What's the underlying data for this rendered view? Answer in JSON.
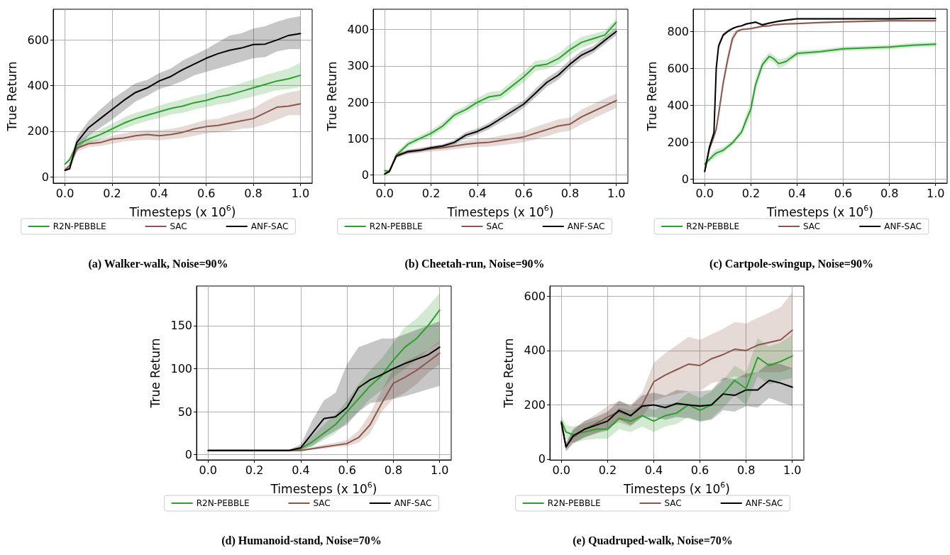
{
  "chart_data": [
    {
      "type": "line",
      "title": "(a) Walker-walk, Noise=90%",
      "xlabel": "Timesteps (x 10$^{6}$)",
      "ylabel": "True Return",
      "grid": true,
      "legend": "bottom",
      "xlim": [
        -0.05,
        1.05
      ],
      "xticks": [
        {
          "value": 0,
          "label": "0.0"
        },
        {
          "value": 0.2,
          "label": "0.2"
        },
        {
          "value": 0.4,
          "label": "0.4"
        },
        {
          "value": 0.6,
          "label": "0.6"
        },
        {
          "value": 0.8,
          "label": "0.8"
        },
        {
          "value": 1,
          "label": "1.0"
        }
      ],
      "ylim": [
        -28,
        735
      ],
      "yticks": [
        0,
        200,
        400,
        600
      ],
      "x": [
        0,
        0.02,
        0.05,
        0.1,
        0.15,
        0.2,
        0.25,
        0.3,
        0.35,
        0.4,
        0.45,
        0.5,
        0.55,
        0.6,
        0.65,
        0.7,
        0.75,
        0.8,
        0.85,
        0.9,
        0.95,
        1.0
      ],
      "series": [
        {
          "name": "R2N-PEBBLE",
          "color": "#2ca02c",
          "values": [
            55,
            75,
            140,
            165,
            185,
            210,
            235,
            255,
            270,
            285,
            300,
            310,
            325,
            335,
            350,
            360,
            375,
            390,
            405,
            420,
            430,
            445
          ],
          "lower": [
            50,
            65,
            120,
            145,
            163,
            188,
            210,
            230,
            245,
            258,
            273,
            280,
            295,
            305,
            318,
            325,
            340,
            352,
            365,
            380,
            385,
            395
          ],
          "upper": [
            60,
            85,
            160,
            185,
            207,
            232,
            260,
            280,
            295,
            312,
            327,
            340,
            355,
            365,
            382,
            395,
            410,
            428,
            445,
            460,
            475,
            500
          ]
        },
        {
          "name": "SAC",
          "color": "#8c564b",
          "values": [
            30,
            50,
            125,
            145,
            150,
            165,
            170,
            180,
            185,
            180,
            185,
            195,
            210,
            220,
            225,
            235,
            245,
            255,
            280,
            305,
            310,
            320
          ],
          "lower": [
            27,
            45,
            110,
            130,
            135,
            145,
            155,
            160,
            162,
            160,
            165,
            170,
            180,
            190,
            195,
            200,
            210,
            215,
            230,
            250,
            270,
            270
          ],
          "upper": [
            33,
            60,
            135,
            160,
            165,
            180,
            190,
            200,
            205,
            205,
            210,
            220,
            235,
            250,
            255,
            270,
            285,
            300,
            330,
            355,
            370,
            380
          ]
        },
        {
          "name": "ANF-SAC",
          "color": "#000000",
          "values": [
            28,
            35,
            150,
            215,
            255,
            295,
            335,
            370,
            390,
            420,
            440,
            470,
            495,
            520,
            540,
            555,
            565,
            580,
            582,
            600,
            620,
            628
          ],
          "lower": [
            25,
            30,
            110,
            180,
            215,
            250,
            290,
            330,
            355,
            385,
            400,
            420,
            445,
            460,
            475,
            490,
            505,
            520,
            525,
            550,
            560,
            560
          ],
          "upper": [
            32,
            45,
            175,
            245,
            295,
            340,
            375,
            410,
            425,
            455,
            475,
            510,
            535,
            560,
            590,
            620,
            630,
            650,
            660,
            680,
            695,
            705
          ]
        }
      ]
    },
    {
      "type": "line",
      "title": "(b) Cheetah-run, Noise=90%",
      "xlabel": "Timesteps (x 10$^{6}$)",
      "ylabel": "True Return",
      "grid": true,
      "legend": "bottom",
      "xlim": [
        -0.05,
        1.05
      ],
      "xticks": [
        {
          "value": 0,
          "label": "0.0"
        },
        {
          "value": 0.2,
          "label": "0.2"
        },
        {
          "value": 0.4,
          "label": "0.4"
        },
        {
          "value": 0.6,
          "label": "0.6"
        },
        {
          "value": 0.8,
          "label": "0.8"
        },
        {
          "value": 1,
          "label": "1.0"
        }
      ],
      "ylim": [
        -22,
        456
      ],
      "yticks": [
        0,
        100,
        200,
        300,
        400
      ],
      "x": [
        0,
        0.02,
        0.05,
        0.1,
        0.15,
        0.2,
        0.25,
        0.3,
        0.35,
        0.4,
        0.45,
        0.5,
        0.55,
        0.6,
        0.65,
        0.7,
        0.75,
        0.8,
        0.85,
        0.9,
        0.95,
        1.0
      ],
      "series": [
        {
          "name": "R2N-PEBBLE",
          "color": "#2ca02c",
          "values": [
            12,
            10,
            55,
            85,
            100,
            115,
            135,
            165,
            180,
            200,
            215,
            220,
            245,
            270,
            300,
            305,
            320,
            345,
            365,
            375,
            385,
            420
          ],
          "lower": [
            8,
            5,
            48,
            77,
            92,
            106,
            125,
            155,
            170,
            188,
            202,
            208,
            232,
            255,
            286,
            292,
            305,
            330,
            350,
            362,
            373,
            405
          ],
          "upper": [
            16,
            15,
            62,
            93,
            108,
            124,
            145,
            175,
            190,
            212,
            228,
            232,
            258,
            285,
            314,
            318,
            335,
            360,
            380,
            388,
            397,
            430
          ]
        },
        {
          "name": "SAC",
          "color": "#8c564b",
          "values": [
            3,
            12,
            55,
            63,
            68,
            72,
            75,
            80,
            85,
            88,
            90,
            95,
            100,
            105,
            115,
            125,
            135,
            140,
            160,
            175,
            190,
            205
          ],
          "lower": [
            1,
            8,
            50,
            57,
            61,
            65,
            67,
            71,
            75,
            77,
            78,
            82,
            86,
            90,
            98,
            107,
            117,
            122,
            140,
            155,
            170,
            185
          ],
          "upper": [
            5,
            16,
            60,
            69,
            75,
            79,
            83,
            89,
            95,
            99,
            102,
            108,
            114,
            120,
            132,
            143,
            153,
            158,
            180,
            195,
            210,
            225
          ]
        },
        {
          "name": "ANF-SAC",
          "color": "#000000",
          "values": [
            3,
            10,
            52,
            65,
            68,
            75,
            80,
            90,
            110,
            120,
            135,
            155,
            175,
            195,
            225,
            255,
            275,
            305,
            330,
            345,
            370,
            395
          ],
          "lower": [
            1,
            6,
            47,
            60,
            63,
            70,
            75,
            84,
            102,
            112,
            126,
            145,
            163,
            185,
            213,
            243,
            263,
            293,
            318,
            335,
            360,
            385
          ],
          "upper": [
            5,
            14,
            57,
            70,
            73,
            80,
            85,
            96,
            118,
            128,
            144,
            165,
            187,
            205,
            237,
            267,
            287,
            317,
            342,
            355,
            380,
            405
          ]
        }
      ]
    },
    {
      "type": "line",
      "title": "(c) Cartpole-swingup, Noise=90%",
      "xlabel": "Timesteps (x 10$^{6}$)",
      "ylabel": "True Return",
      "grid": true,
      "legend": "bottom",
      "xlim": [
        -0.05,
        1.05
      ],
      "xticks": [
        {
          "value": 0,
          "label": "0.0"
        },
        {
          "value": 0.2,
          "label": "0.2"
        },
        {
          "value": 0.4,
          "label": "0.4"
        },
        {
          "value": 0.6,
          "label": "0.6"
        },
        {
          "value": 0.8,
          "label": "0.8"
        },
        {
          "value": 1,
          "label": "1.0"
        }
      ],
      "ylim": [
        -23,
        920
      ],
      "yticks": [
        0,
        200,
        400,
        600,
        800
      ],
      "x": [
        0,
        0.02,
        0.04,
        0.05,
        0.06,
        0.08,
        0.1,
        0.12,
        0.14,
        0.16,
        0.18,
        0.2,
        0.22,
        0.25,
        0.28,
        0.3,
        0.32,
        0.35,
        0.4,
        0.5,
        0.6,
        0.7,
        0.8,
        0.9,
        1.0
      ],
      "series": [
        {
          "name": "R2N-PEBBLE",
          "color": "#2ca02c",
          "values": [
            80,
            105,
            130,
            140,
            145,
            155,
            175,
            195,
            225,
            255,
            320,
            380,
            510,
            620,
            665,
            650,
            625,
            635,
            680,
            690,
            705,
            710,
            715,
            725,
            730
          ],
          "lower": [
            70,
            90,
            110,
            120,
            125,
            140,
            160,
            180,
            210,
            235,
            290,
            345,
            475,
            595,
            645,
            630,
            600,
            615,
            665,
            678,
            693,
            698,
            703,
            713,
            718
          ],
          "upper": [
            90,
            120,
            150,
            160,
            165,
            170,
            190,
            210,
            240,
            275,
            350,
            415,
            545,
            645,
            685,
            670,
            650,
            655,
            695,
            702,
            717,
            722,
            727,
            737,
            742
          ]
        },
        {
          "name": "SAC",
          "color": "#8c564b",
          "values": [
            40,
            160,
            230,
            270,
            350,
            520,
            650,
            760,
            800,
            810,
            812,
            815,
            820,
            828,
            830,
            835,
            837,
            840,
            842,
            848,
            852,
            855,
            857,
            857,
            857
          ],
          "lower": [
            35,
            150,
            215,
            250,
            325,
            490,
            620,
            735,
            790,
            805,
            807,
            810,
            815,
            823,
            825,
            830,
            832,
            835,
            837,
            843,
            847,
            850,
            852,
            852,
            852
          ],
          "upper": [
            45,
            170,
            245,
            290,
            375,
            550,
            680,
            785,
            810,
            815,
            817,
            820,
            825,
            833,
            835,
            840,
            842,
            845,
            847,
            853,
            857,
            860,
            862,
            862,
            862
          ]
        },
        {
          "name": "ANF-SAC",
          "color": "#000000",
          "values": [
            40,
            170,
            250,
            600,
            720,
            780,
            800,
            815,
            825,
            830,
            840,
            845,
            850,
            835,
            845,
            850,
            855,
            860,
            868,
            868,
            868,
            868,
            868,
            870,
            870
          ],
          "lower": [
            35,
            160,
            235,
            575,
            700,
            770,
            792,
            810,
            820,
            825,
            835,
            840,
            845,
            827,
            840,
            845,
            850,
            855,
            863,
            863,
            863,
            863,
            863,
            865,
            865
          ],
          "upper": [
            45,
            180,
            265,
            625,
            740,
            790,
            808,
            820,
            830,
            835,
            845,
            850,
            855,
            843,
            850,
            855,
            860,
            865,
            873,
            873,
            873,
            873,
            873,
            875,
            875
          ]
        }
      ]
    },
    {
      "type": "line",
      "title": "(d) Humanoid-stand, Noise=70%",
      "xlabel": "Timesteps (x 10$^{6}$)",
      "ylabel": "True Return",
      "grid": true,
      "legend": "bottom",
      "xlim": [
        -0.05,
        1.05
      ],
      "xticks": [
        {
          "value": 0,
          "label": "0.0"
        },
        {
          "value": 0.2,
          "label": "0.2"
        },
        {
          "value": 0.4,
          "label": "0.4"
        },
        {
          "value": 0.6,
          "label": "0.6"
        },
        {
          "value": 0.8,
          "label": "0.8"
        },
        {
          "value": 1,
          "label": "1.0"
        }
      ],
      "ylim": [
        -6,
        196
      ],
      "yticks": [
        0,
        50,
        100,
        150
      ],
      "x": [
        0,
        0.05,
        0.1,
        0.15,
        0.2,
        0.25,
        0.3,
        0.35,
        0.4,
        0.45,
        0.5,
        0.55,
        0.6,
        0.65,
        0.7,
        0.75,
        0.8,
        0.85,
        0.9,
        0.95,
        1.0
      ],
      "series": [
        {
          "name": "R2N-PEBBLE",
          "color": "#2ca02c",
          "values": [
            null,
            null,
            null,
            null,
            null,
            null,
            null,
            5,
            7,
            15,
            25,
            35,
            50,
            65,
            80,
            92,
            110,
            125,
            135,
            150,
            168
          ],
          "lower": [
            4,
            4,
            4,
            4,
            4,
            4,
            4,
            4,
            6,
            10,
            17,
            25,
            38,
            50,
            65,
            75,
            90,
            100,
            110,
            122,
            130
          ],
          "upper": [
            6,
            6,
            6,
            6,
            6,
            6,
            6,
            6,
            9,
            22,
            35,
            47,
            63,
            82,
            98,
            112,
            130,
            148,
            158,
            172,
            188
          ]
        },
        {
          "name": "SAC",
          "color": "#8c564b",
          "values": [
            5,
            5,
            5,
            5,
            5,
            5,
            5,
            5,
            5,
            7,
            9,
            11,
            13,
            20,
            35,
            60,
            83,
            90,
            98,
            108,
            118
          ],
          "lower": [
            4,
            4,
            4,
            4,
            4,
            4,
            4,
            4,
            4,
            6,
            7,
            9,
            10,
            14,
            25,
            50,
            65,
            72,
            82,
            95,
            105
          ],
          "upper": [
            6,
            6,
            6,
            6,
            6,
            6,
            6,
            6,
            6,
            9,
            12,
            14,
            17,
            28,
            48,
            75,
            100,
            108,
            115,
            122,
            132
          ]
        },
        {
          "name": "ANF-SAC",
          "color": "#000000",
          "values": [
            5,
            5,
            5,
            5,
            5,
            5,
            5,
            5,
            8,
            25,
            42,
            44,
            55,
            78,
            87,
            93,
            100,
            106,
            111,
            116,
            125
          ],
          "lower": [
            4,
            4,
            4,
            4,
            4,
            4,
            4,
            4,
            5,
            10,
            20,
            28,
            35,
            50,
            60,
            62,
            65,
            68,
            72,
            76,
            80
          ],
          "upper": [
            6,
            6,
            6,
            6,
            6,
            6,
            6,
            6,
            12,
            40,
            63,
            72,
            105,
            125,
            130,
            135,
            135,
            140,
            145,
            150,
            155
          ]
        }
      ]
    },
    {
      "type": "line",
      "title": "(e) Quadruped-walk, Noise=70%",
      "xlabel": "Timesteps (x 10$^{6}$)",
      "ylabel": "True Return",
      "grid": true,
      "legend": "bottom",
      "xlim": [
        -0.05,
        1.05
      ],
      "xticks": [
        {
          "value": 0,
          "label": "0.0"
        },
        {
          "value": 0.2,
          "label": "0.2"
        },
        {
          "value": 0.4,
          "label": "0.4"
        },
        {
          "value": 0.6,
          "label": "0.6"
        },
        {
          "value": 0.8,
          "label": "0.8"
        },
        {
          "value": 1,
          "label": "1.0"
        }
      ],
      "ylim": [
        -3,
        638
      ],
      "yticks": [
        0,
        200,
        400,
        600
      ],
      "x": [
        0,
        0.02,
        0.05,
        0.1,
        0.15,
        0.2,
        0.25,
        0.3,
        0.35,
        0.4,
        0.45,
        0.5,
        0.55,
        0.6,
        0.65,
        0.7,
        0.75,
        0.8,
        0.85,
        0.9,
        0.95,
        1.0
      ],
      "series": [
        {
          "name": "R2N-PEBBLE",
          "color": "#2ca02c",
          "values": [
            140,
            100,
            90,
            100,
            110,
            110,
            150,
            140,
            160,
            140,
            160,
            170,
            200,
            180,
            200,
            240,
            290,
            260,
            375,
            345,
            360,
            380
          ],
          "lower": [
            120,
            75,
            60,
            70,
            75,
            75,
            110,
            100,
            120,
            100,
            120,
            130,
            155,
            135,
            150,
            190,
            235,
            200,
            305,
            275,
            290,
            300
          ],
          "upper": [
            160,
            125,
            120,
            130,
            145,
            145,
            190,
            180,
            200,
            180,
            200,
            210,
            245,
            225,
            250,
            290,
            345,
            320,
            445,
            415,
            430,
            460
          ]
        },
        {
          "name": "SAC",
          "color": "#8c564b",
          "values": [
            130,
            45,
            80,
            110,
            130,
            155,
            175,
            160,
            200,
            285,
            310,
            330,
            350,
            345,
            370,
            385,
            405,
            400,
            420,
            430,
            440,
            475
          ],
          "lower": [
            115,
            30,
            55,
            80,
            95,
            115,
            135,
            120,
            155,
            215,
            230,
            240,
            250,
            250,
            280,
            290,
            305,
            300,
            320,
            320,
            320,
            335
          ],
          "upper": [
            145,
            60,
            105,
            140,
            165,
            195,
            215,
            200,
            245,
            355,
            390,
            420,
            450,
            440,
            460,
            480,
            505,
            500,
            520,
            540,
            560,
            615
          ]
        },
        {
          "name": "ANF-SAC",
          "color": "#000000",
          "values": [
            135,
            45,
            85,
            110,
            125,
            140,
            180,
            160,
            195,
            200,
            190,
            205,
            200,
            195,
            200,
            240,
            235,
            255,
            255,
            290,
            280,
            265
          ],
          "lower": [
            125,
            30,
            60,
            80,
            95,
            105,
            145,
            125,
            155,
            155,
            145,
            155,
            150,
            140,
            145,
            180,
            175,
            195,
            190,
            225,
            210,
            195
          ],
          "upper": [
            145,
            60,
            110,
            140,
            155,
            175,
            215,
            195,
            235,
            245,
            235,
            255,
            250,
            250,
            255,
            300,
            295,
            315,
            320,
            355,
            350,
            335
          ]
        }
      ]
    }
  ]
}
